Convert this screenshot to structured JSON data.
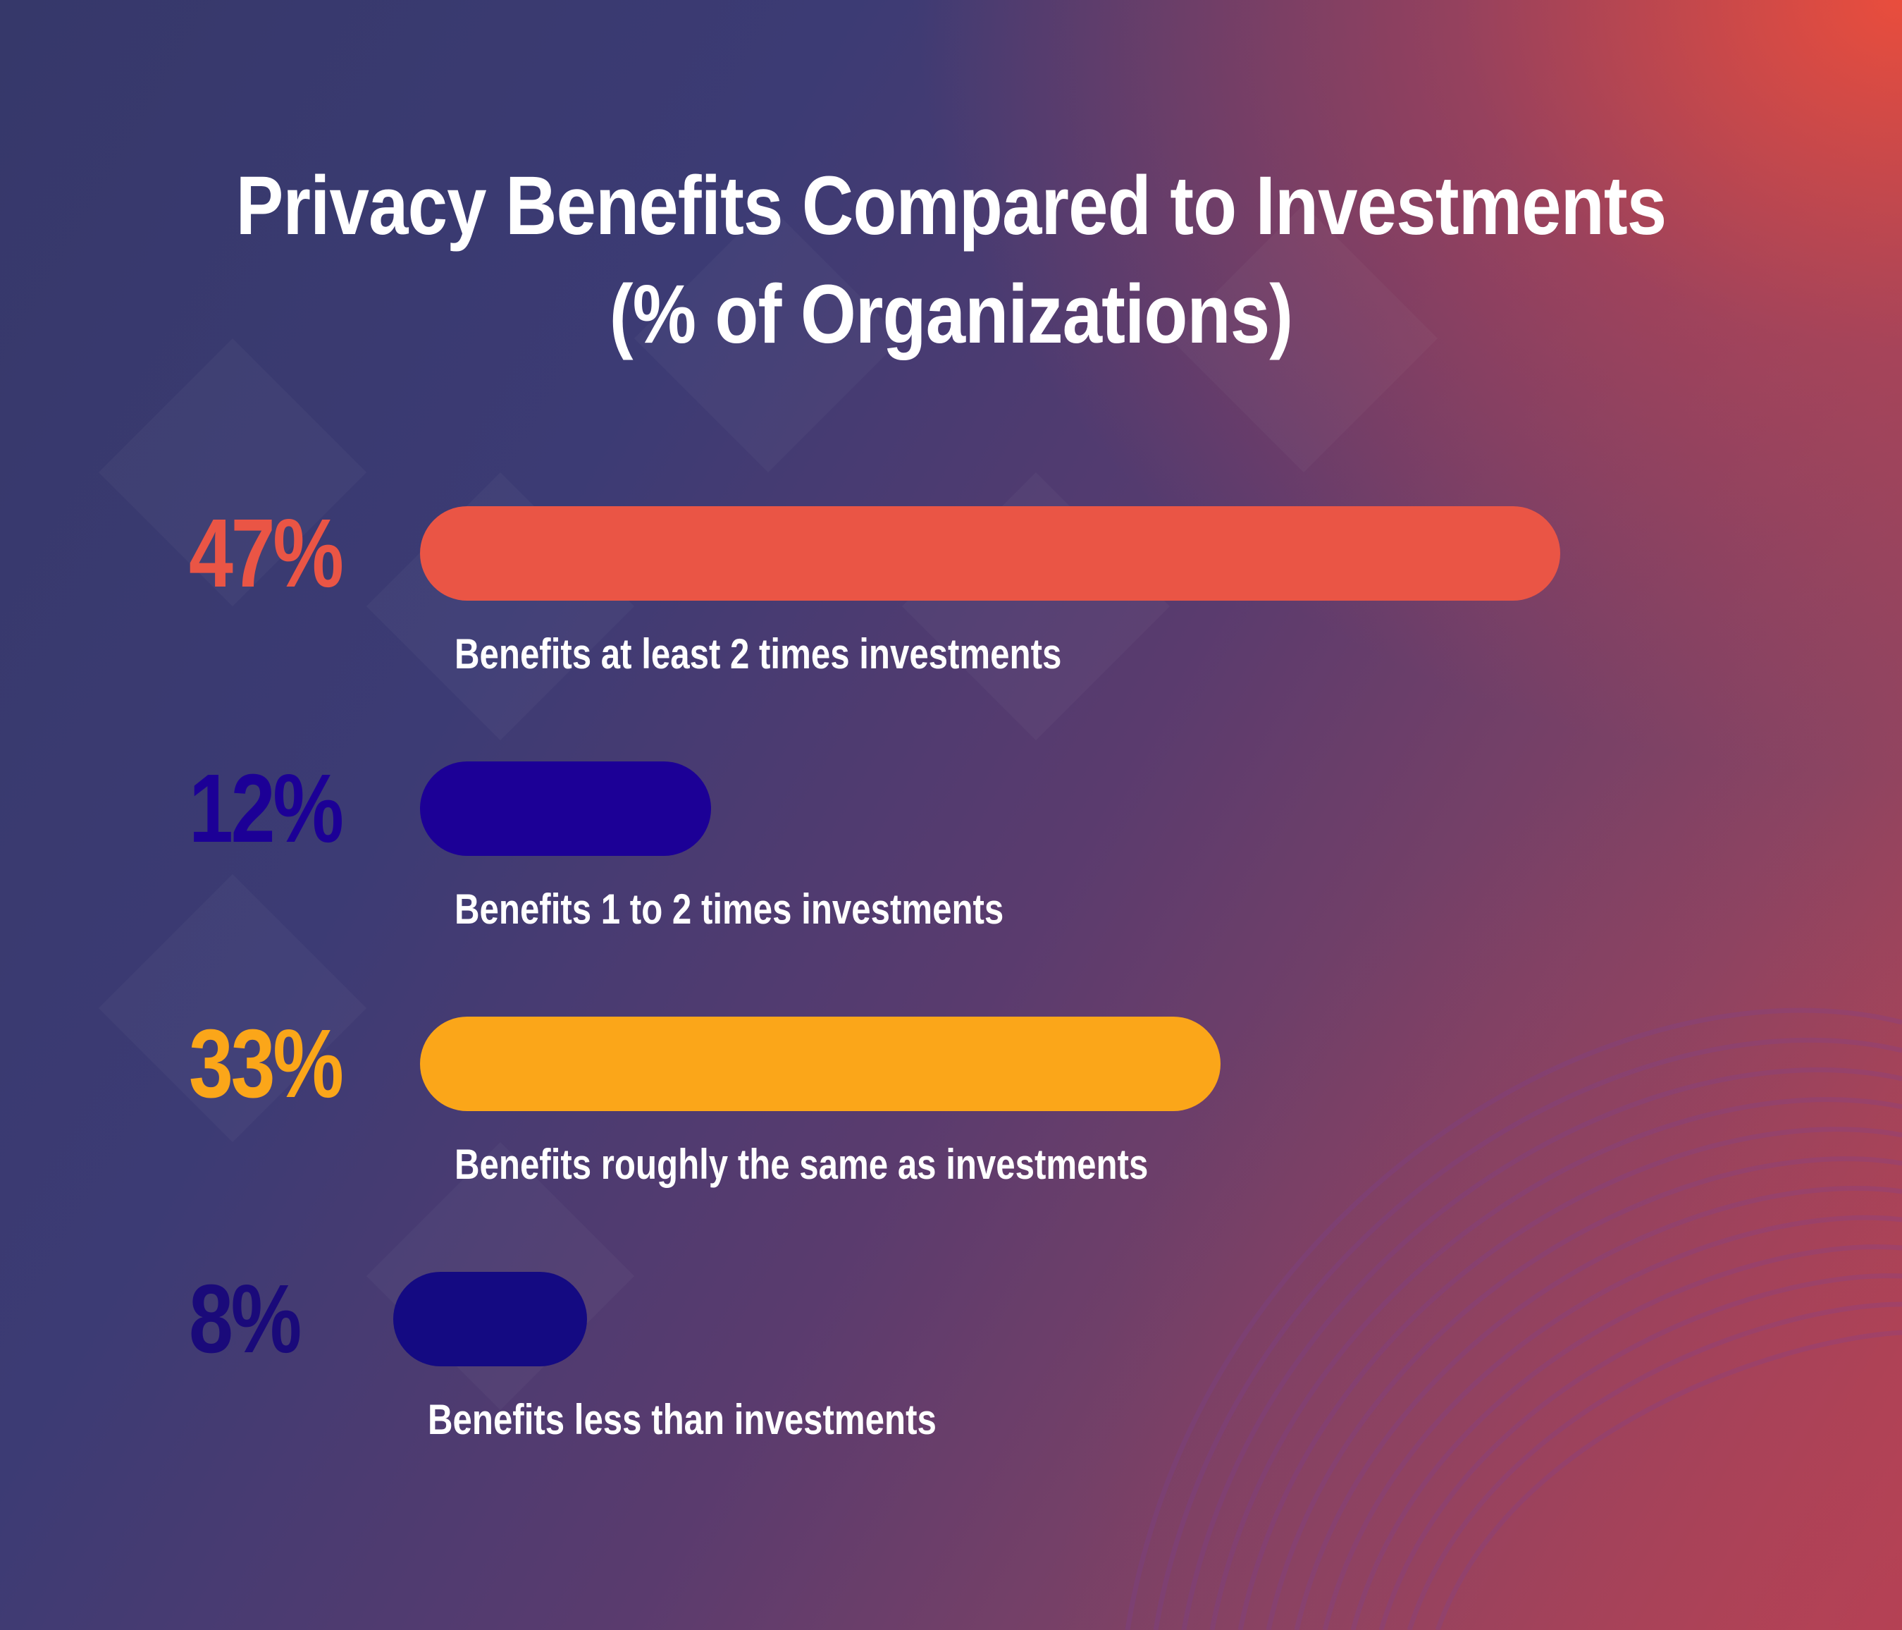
{
  "chart_data": {
    "type": "bar",
    "orientation": "horizontal",
    "title": "Privacy Benefits Compared to Investments",
    "subtitle": "(% of Organizations)",
    "categories": [
      "Benefits at least 2 times investments",
      "Benefits 1 to 2 times investments",
      "Benefits roughly the same as investments",
      "Benefits less than investments"
    ],
    "values": [
      47,
      12,
      33,
      8
    ],
    "value_labels": [
      "47%",
      "12%",
      "33%",
      "8%"
    ],
    "colors": [
      "#ea5545",
      "#1c0096",
      "#fba619",
      "#140a82"
    ],
    "label_colors": [
      "#ea5545",
      "#1c0096",
      "#fba619",
      "#1a0a7a"
    ],
    "xlim": [
      0,
      47
    ],
    "grid": false,
    "legend": "none"
  }
}
